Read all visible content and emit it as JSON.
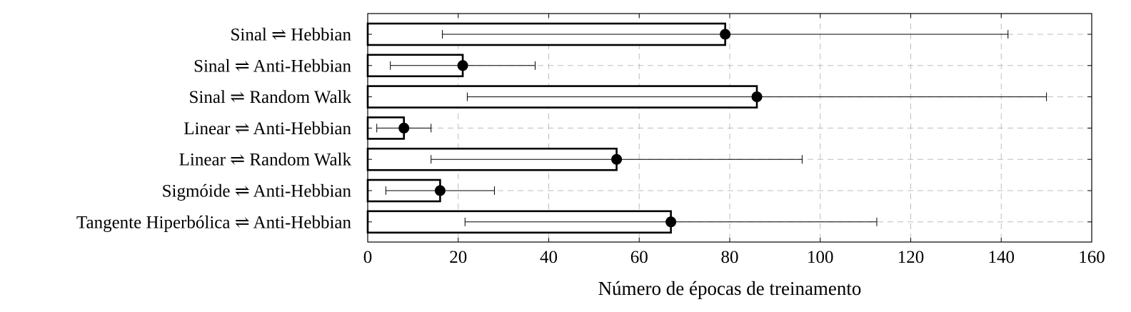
{
  "chart_data": {
    "type": "bar",
    "orientation": "horizontal",
    "categories": [
      "Sinal ⇌ Hebbian",
      "Sinal ⇌ Anti-Hebbian",
      "Sinal ⇌ Random Walk",
      "Linear ⇌ Anti-Hebbian",
      "Linear ⇌ Random Walk",
      "Sigmóide ⇌ Anti-Hebbian",
      "Tangente Hiperbólica ⇌ Anti-Hebbian"
    ],
    "series": [
      {
        "values": [
          79,
          21,
          86,
          8,
          55,
          16,
          67
        ],
        "error_low": [
          16.5,
          5,
          22,
          2,
          14,
          4,
          21.5
        ],
        "error_high": [
          141.5,
          37,
          150,
          14,
          96,
          28,
          112.5
        ]
      }
    ],
    "title": "",
    "xlabel": "Número de épocas de treinamento",
    "ylabel": "",
    "xlim": [
      0,
      160
    ],
    "xticks": [
      0,
      20,
      40,
      60,
      80,
      100,
      120,
      140,
      160
    ],
    "grid": true,
    "legend": "none",
    "colors": {
      "bar_fill": "#ffffff",
      "bar_stroke": "#000000",
      "marker": "#000000",
      "grid": "#bdbdbd"
    }
  }
}
